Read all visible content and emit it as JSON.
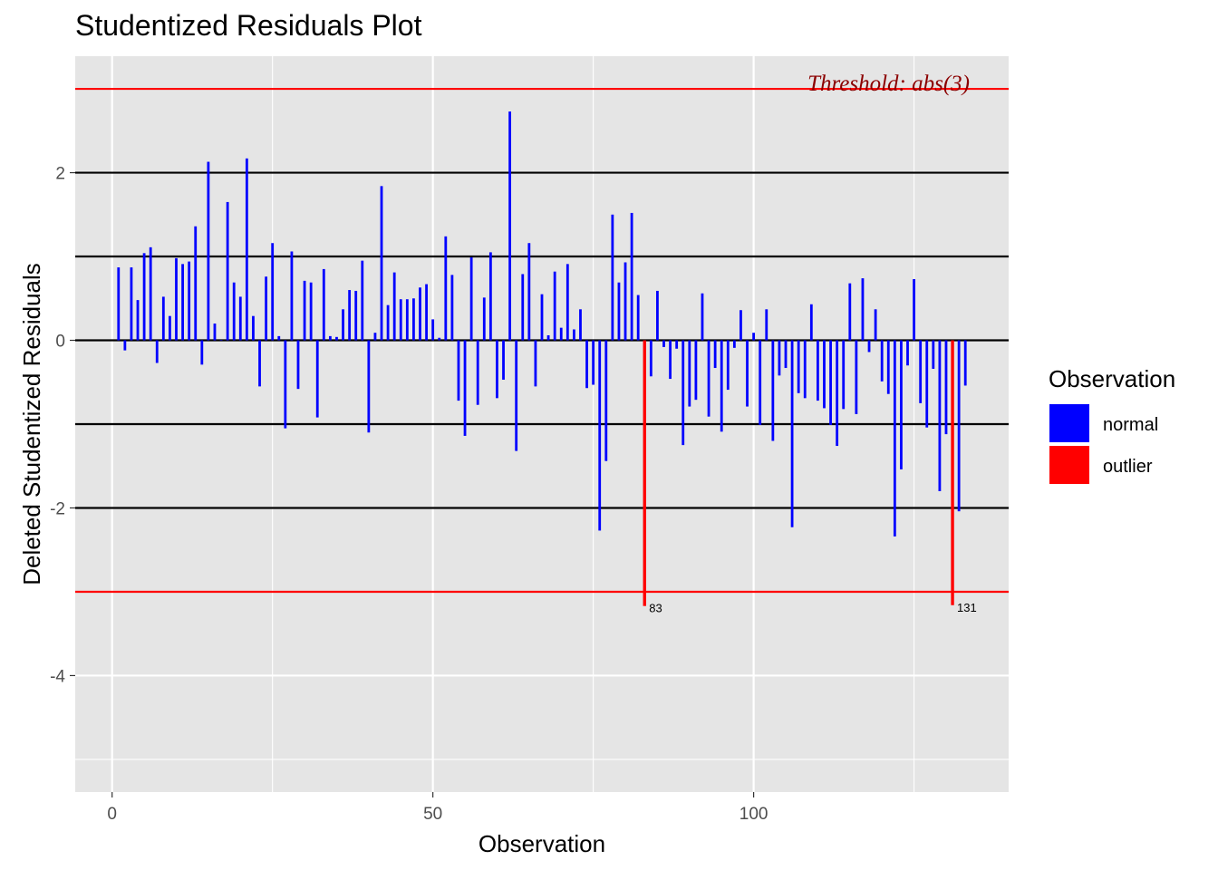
{
  "chart_data": {
    "type": "bar",
    "title": "Studentized Residuals Plot",
    "xlabel": "Observation",
    "ylabel": "Deleted Studentized Residuals",
    "xlim": [
      -5.75,
      139.75
    ],
    "ylim": [
      -5.39,
      3.39
    ],
    "x_ticks": [
      0,
      50,
      100
    ],
    "y_ticks": [
      -4,
      -2,
      0,
      2
    ],
    "grid": true,
    "reference_lines": [
      -2,
      -1,
      0,
      1,
      2
    ],
    "threshold": 3,
    "threshold_label": "Threshold: abs(3)",
    "legend": {
      "title": "Observation",
      "position": "right",
      "entries": [
        {
          "label": "normal",
          "color": "#0000ff"
        },
        {
          "label": "outlier",
          "color": "#ff0000"
        }
      ]
    },
    "colors": {
      "normal": "#0000ff",
      "outlier": "#ff0000",
      "threshold_line": "#ff0000",
      "reference_line": "#000000",
      "panel": "#e5e5e5",
      "grid": "#ffffff"
    },
    "x": [
      1,
      2,
      3,
      4,
      5,
      6,
      7,
      8,
      9,
      10,
      11,
      12,
      13,
      14,
      15,
      16,
      17,
      18,
      19,
      20,
      21,
      22,
      23,
      24,
      25,
      26,
      27,
      28,
      29,
      30,
      31,
      32,
      33,
      34,
      35,
      36,
      37,
      38,
      39,
      40,
      41,
      42,
      43,
      44,
      45,
      46,
      47,
      48,
      49,
      50,
      51,
      52,
      53,
      54,
      55,
      56,
      57,
      58,
      59,
      60,
      61,
      62,
      63,
      64,
      65,
      66,
      67,
      68,
      69,
      70,
      71,
      72,
      73,
      74,
      75,
      76,
      77,
      78,
      79,
      80,
      81,
      82,
      83,
      84,
      85,
      86,
      87,
      88,
      89,
      90,
      91,
      92,
      93,
      94,
      95,
      96,
      97,
      98,
      99,
      100,
      101,
      102,
      103,
      104,
      105,
      106,
      107,
      108,
      109,
      110,
      111,
      112,
      113,
      114,
      115,
      116,
      117,
      118,
      119,
      120,
      121,
      122,
      123,
      124,
      125,
      126,
      127,
      128,
      129,
      130,
      131,
      132,
      133
    ],
    "values": [
      0.87,
      -0.12,
      0.87,
      0.48,
      1.04,
      1.11,
      -0.27,
      0.52,
      0.29,
      0.98,
      0.91,
      0.94,
      1.36,
      -0.29,
      2.13,
      0.2,
      0.0,
      1.65,
      0.69,
      0.52,
      2.17,
      0.29,
      -0.55,
      0.76,
      1.16,
      0.05,
      -1.05,
      1.06,
      -0.58,
      0.71,
      0.69,
      -0.92,
      0.85,
      0.05,
      0.04,
      0.37,
      0.6,
      0.59,
      0.95,
      -1.1,
      0.09,
      1.84,
      0.42,
      0.81,
      0.49,
      0.49,
      0.5,
      0.63,
      0.67,
      0.25,
      0.03,
      1.24,
      0.78,
      -0.72,
      -1.14,
      0.99,
      -0.77,
      0.51,
      1.05,
      -0.69,
      -0.47,
      2.73,
      -1.32,
      0.79,
      1.16,
      -0.55,
      0.55,
      0.06,
      0.82,
      0.15,
      0.91,
      0.13,
      0.37,
      -0.57,
      -0.53,
      -2.27,
      -1.44,
      1.5,
      0.69,
      0.93,
      1.52,
      0.54,
      -3.17,
      -0.43,
      0.59,
      -0.08,
      -0.46,
      -0.1,
      -1.25,
      -0.79,
      -0.71,
      0.56,
      -0.91,
      -0.33,
      -1.09,
      -0.59,
      -0.09,
      0.36,
      -0.79,
      0.09,
      -1.01,
      0.37,
      -1.2,
      -0.42,
      -0.33,
      -2.23,
      -0.63,
      -0.69,
      0.43,
      -0.72,
      -0.81,
      -1.01,
      -1.26,
      -0.82,
      0.68,
      -0.88,
      0.74,
      -0.14,
      0.37,
      -0.49,
      -0.64,
      -2.34,
      -1.54,
      -0.3,
      0.73,
      -0.75,
      -1.04,
      -0.34,
      -1.8,
      -1.12,
      -3.16,
      -2.04,
      -0.54
    ],
    "outliers": [
      83,
      131
    ],
    "outlier_labels": [
      "83",
      "131"
    ]
  }
}
